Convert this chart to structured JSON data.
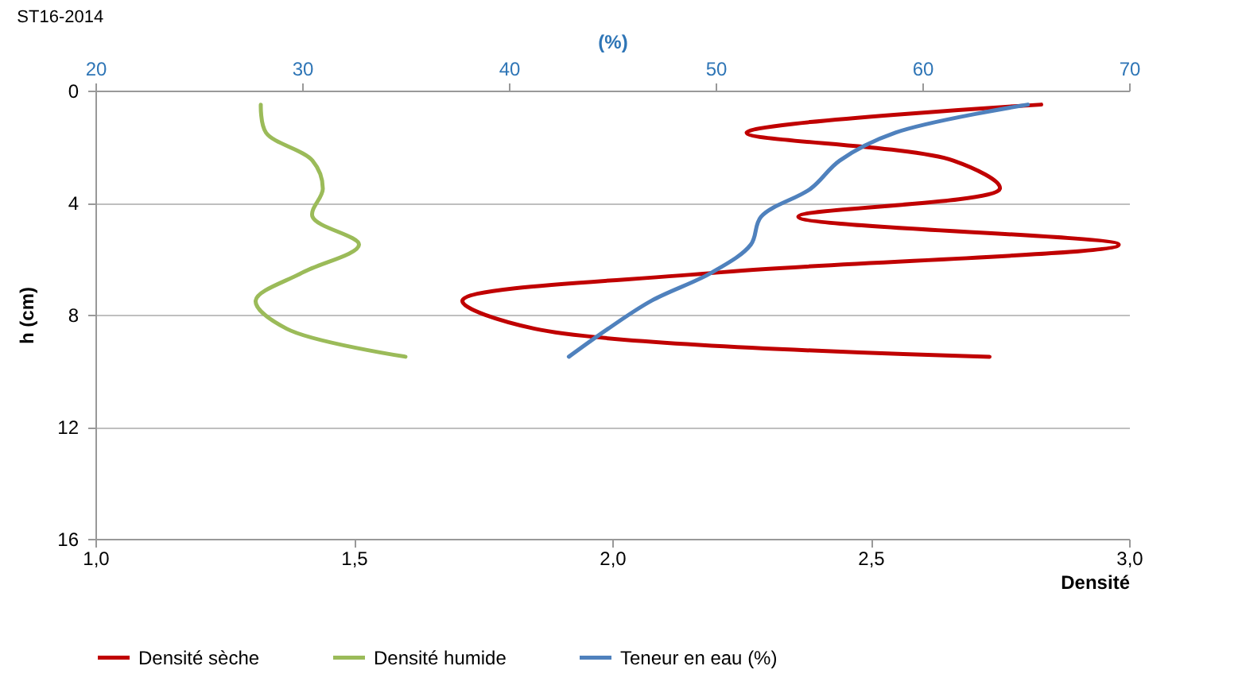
{
  "chart_data": {
    "type": "line",
    "title": "ST16-2014",
    "xlabel": "Densité",
    "x2label": "(%)",
    "ylabel": "h (cm)",
    "xlim": [
      1.0,
      3.0
    ],
    "xticks": [
      {
        "value": 1.0,
        "label": "1,0"
      },
      {
        "value": 1.5,
        "label": "1,5"
      },
      {
        "value": 2.0,
        "label": "2,0"
      },
      {
        "value": 2.5,
        "label": "2,5"
      },
      {
        "value": 3.0,
        "label": "3,0"
      }
    ],
    "x2lim": [
      20,
      70
    ],
    "x2ticks": [
      20,
      30,
      40,
      50,
      60,
      70
    ],
    "ylim": [
      16,
      0
    ],
    "yticks": [
      0,
      4,
      8,
      12,
      16
    ],
    "grid": "y",
    "legend": "bottom",
    "series": [
      {
        "name": "Densité sèche",
        "color": "#c00000",
        "x": [
          2.83,
          2.26,
          2.66,
          2.75,
          2.36,
          2.98,
          2.2,
          1.71,
          1.85,
          2.73
        ],
        "values": [
          0.5,
          1.5,
          2.5,
          3.5,
          4.5,
          5.5,
          6.5,
          7.5,
          8.5,
          9.5
        ]
      },
      {
        "name": "Densité humide",
        "color": "#9bbb59",
        "x": [
          1.32,
          1.33,
          1.42,
          1.44,
          1.42,
          1.51,
          1.4,
          1.31,
          1.37,
          1.6
        ],
        "values": [
          0.5,
          1.5,
          2.5,
          3.5,
          4.5,
          5.5,
          6.5,
          7.5,
          8.5,
          9.5
        ]
      },
      {
        "name": "Teneur en eau (%)",
        "color": "#4f81bd",
        "axis": "x2",
        "x": [
          65.1,
          58.7,
          56.0,
          54.6,
          52.2,
          51.7,
          49.8,
          46.9,
          44.8,
          42.9
        ],
        "values": [
          0.5,
          1.5,
          2.5,
          3.5,
          4.5,
          5.5,
          6.5,
          7.5,
          8.5,
          9.5
        ]
      }
    ]
  }
}
